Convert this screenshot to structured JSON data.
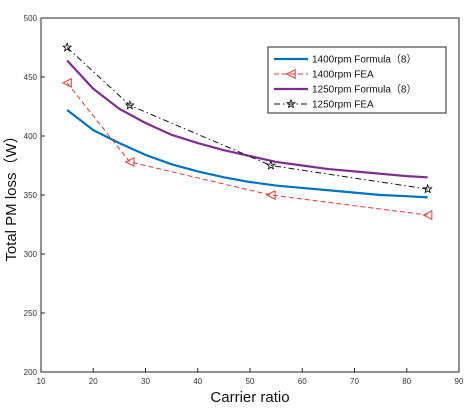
{
  "chart_data": {
    "type": "line",
    "title": "",
    "xlabel": "Carrier ratio",
    "ylabel": "Total PM loss（W）",
    "xlim": [
      10,
      90
    ],
    "ylim": [
      200,
      500
    ],
    "xticks": [
      10,
      20,
      30,
      40,
      50,
      60,
      70,
      80,
      90
    ],
    "yticks": [
      200,
      250,
      300,
      350,
      400,
      450,
      500
    ],
    "grid": false,
    "legend_position": "top-right",
    "series": [
      {
        "name": "1400rpm  Formula（8）",
        "color": "#0072BD",
        "style": "solid",
        "marker": "none",
        "x": [
          15,
          20,
          25,
          30,
          35,
          40,
          45,
          50,
          55,
          60,
          65,
          70,
          75,
          80,
          84
        ],
        "y": [
          422,
          405,
          394,
          384,
          376,
          370,
          365,
          361,
          358,
          356,
          354,
          352,
          350,
          349,
          348
        ]
      },
      {
        "name": "1400rpm  FEA",
        "color": "#E03C31",
        "style": "dashed",
        "marker": "triangle-left",
        "x": [
          15,
          27,
          54,
          84
        ],
        "y": [
          445,
          378,
          350,
          333
        ]
      },
      {
        "name": "1250rpm  Formula（8）",
        "color": "#7E2F8E",
        "style": "solid",
        "marker": "none",
        "x": [
          15,
          20,
          25,
          30,
          35,
          40,
          45,
          50,
          55,
          60,
          65,
          70,
          75,
          80,
          84
        ],
        "y": [
          464,
          440,
          423,
          411,
          401,
          394,
          388,
          383,
          378,
          375,
          372,
          370,
          368,
          366,
          365
        ]
      },
      {
        "name": "1250rpm  FEA",
        "color": "#111111",
        "style": "dashdot",
        "marker": "star",
        "x": [
          15,
          27,
          54,
          84
        ],
        "y": [
          475,
          426,
          375,
          355
        ]
      }
    ]
  }
}
